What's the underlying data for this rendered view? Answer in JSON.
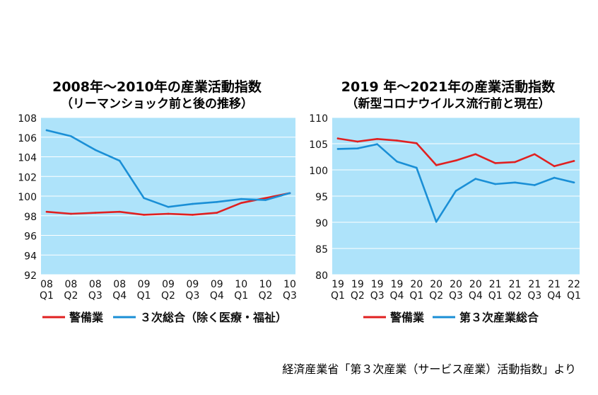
{
  "chart_data": [
    {
      "type": "line",
      "title": "2008年～2010年の産業活動指数",
      "subtitle": "（リーマンショック前と後の推移）",
      "categories": [
        {
          "year": "08",
          "q": "Q1"
        },
        {
          "year": "08",
          "q": "Q2"
        },
        {
          "year": "08",
          "q": "Q3"
        },
        {
          "year": "08",
          "q": "Q4"
        },
        {
          "year": "09",
          "q": "Q1"
        },
        {
          "year": "09",
          "q": "Q2"
        },
        {
          "year": "09",
          "q": "Q3"
        },
        {
          "year": "09",
          "q": "Q4"
        },
        {
          "year": "10",
          "q": "Q1"
        },
        {
          "year": "10",
          "q": "Q2"
        },
        {
          "year": "10",
          "q": "Q3"
        }
      ],
      "ylim": [
        92,
        108
      ],
      "yticks": [
        92,
        94,
        96,
        98,
        100,
        102,
        104,
        106,
        108
      ],
      "grid": true,
      "legend_position": "bottom",
      "series": [
        {
          "name": "警備業",
          "color": "#e02020",
          "values": [
            98.4,
            98.2,
            98.3,
            98.4,
            98.1,
            98.2,
            98.1,
            98.3,
            99.3,
            99.8,
            100.3
          ]
        },
        {
          "name": "３次総合（除く医療・福祉）",
          "color": "#1a8fd6",
          "values": [
            106.7,
            106.1,
            104.7,
            103.6,
            99.8,
            98.9,
            99.2,
            99.4,
            99.7,
            99.6,
            100.3
          ]
        }
      ]
    },
    {
      "type": "line",
      "title": "2019 年～2021年の産業活動指数",
      "subtitle": "（新型コロナウイルス流行前と現在）",
      "categories": [
        {
          "year": "19",
          "q": "Q1"
        },
        {
          "year": "19",
          "q": "Q2"
        },
        {
          "year": "19",
          "q": "Q3"
        },
        {
          "year": "19",
          "q": "Q4"
        },
        {
          "year": "20",
          "q": "Q1"
        },
        {
          "year": "20",
          "q": "Q2"
        },
        {
          "year": "20",
          "q": "Q3"
        },
        {
          "year": "20",
          "q": "Q4"
        },
        {
          "year": "21",
          "q": "Q1"
        },
        {
          "year": "21",
          "q": "Q2"
        },
        {
          "year": "21",
          "q": "Q3"
        },
        {
          "year": "21",
          "q": "Q4"
        },
        {
          "year": "22",
          "q": "Q1"
        }
      ],
      "ylim": [
        80,
        110
      ],
      "yticks": [
        80,
        85,
        90,
        95,
        100,
        105,
        110
      ],
      "grid": true,
      "legend_position": "bottom",
      "series": [
        {
          "name": "警備業",
          "color": "#e02020",
          "values": [
            106.0,
            105.4,
            105.9,
            105.6,
            105.1,
            100.9,
            101.8,
            103.0,
            101.3,
            101.5,
            103.0,
            100.7,
            101.7
          ]
        },
        {
          "name": "第３次産業総合",
          "color": "#1a8fd6",
          "values": [
            104.0,
            104.1,
            104.9,
            101.6,
            100.4,
            90.1,
            96.0,
            98.3,
            97.3,
            97.6,
            97.1,
            98.5,
            97.6
          ]
        }
      ]
    }
  ],
  "source_text": "経済産業省「第３次産業（サービス産業）活動指数」より"
}
